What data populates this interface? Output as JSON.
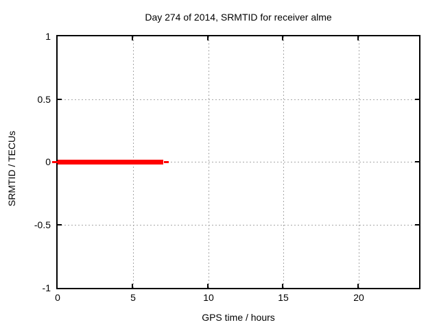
{
  "chart_data": {
    "type": "line",
    "title": "Day 274 of 2014, SRMTID for receiver alme",
    "xlabel": "GPS time / hours",
    "ylabel": "SRMTID / TECUs",
    "xlim": [
      0,
      24
    ],
    "ylim": [
      -1,
      1
    ],
    "x_ticks": [
      0,
      5,
      10,
      15,
      20
    ],
    "x_tick_labels": [
      "0",
      "5",
      "10",
      "15",
      "20"
    ],
    "y_ticks": [
      1,
      0.5,
      0,
      -0.5,
      -1
    ],
    "y_tick_labels": [
      "1",
      "0.5",
      "0",
      "-0.5",
      "-1"
    ],
    "grid": true,
    "grid_style": "dotted",
    "grid_color": "#a6a6a6",
    "border_color": "#000000",
    "background_color": "#ffffff",
    "legend_position": "none",
    "series": [
      {
        "name": "SRMTID",
        "color": "#ff0000",
        "style": "thick-horizontal-line",
        "y_value": 0,
        "x_start": 0,
        "x_end": 7,
        "points": [
          [
            0,
            0
          ],
          [
            7,
            0
          ]
        ]
      }
    ]
  }
}
